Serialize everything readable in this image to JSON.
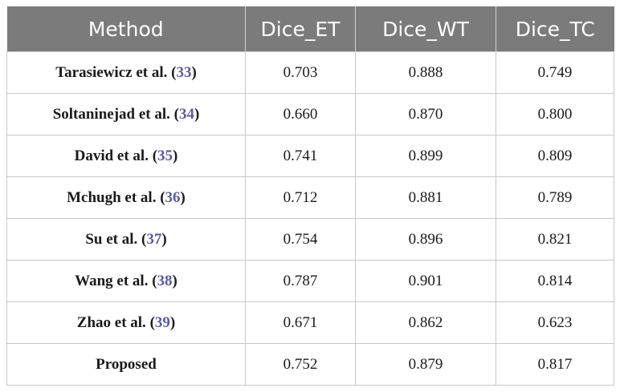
{
  "table": {
    "headers": [
      "Method",
      "Dice_ET",
      "Dice_WT",
      "Dice_TC"
    ],
    "rows": [
      {
        "method": "Tarasiewicz et al.",
        "ref": "33",
        "et": "0.703",
        "wt": "0.888",
        "tc": "0.749"
      },
      {
        "method": "Soltaninejad et al.",
        "ref": "34",
        "et": "0.660",
        "wt": "0.870",
        "tc": "0.800"
      },
      {
        "method": "David et al.",
        "ref": "35",
        "et": "0.741",
        "wt": "0.899",
        "tc": "0.809"
      },
      {
        "method": "Mchugh et al.",
        "ref": "36",
        "et": "0.712",
        "wt": "0.881",
        "tc": "0.789"
      },
      {
        "method": "Su et al.",
        "ref": "37",
        "et": "0.754",
        "wt": "0.896",
        "tc": "0.821"
      },
      {
        "method": "Wang et al.",
        "ref": "38",
        "et": "0.787",
        "wt": "0.901",
        "tc": "0.814"
      },
      {
        "method": "Zhao et al.",
        "ref": "39",
        "et": "0.671",
        "wt": "0.862",
        "tc": "0.623"
      },
      {
        "method": "Proposed",
        "ref": "",
        "et": "0.752",
        "wt": "0.879",
        "tc": "0.817"
      }
    ]
  },
  "colors": {
    "header_bg": "#7b7b7b",
    "header_text": "#ffffff",
    "ref_link": "#5b5ba3",
    "grid": "#c8c8c8"
  }
}
